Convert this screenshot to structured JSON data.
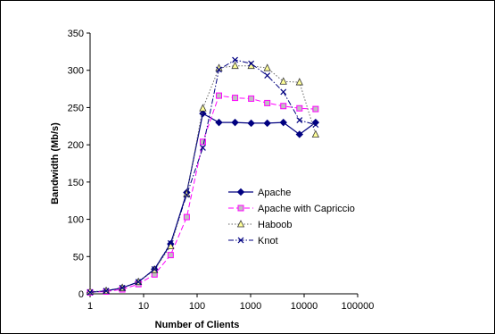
{
  "chart_data": {
    "type": "line",
    "title": "",
    "xlabel": "Number of Clients",
    "ylabel": "Bandwidth (Mb/s)",
    "xscale": "log",
    "xlim": [
      1,
      100000
    ],
    "ylim": [
      0,
      350
    ],
    "xticks": [
      "1",
      "10",
      "100",
      "1000",
      "10000",
      "100000"
    ],
    "yticks": [
      "0",
      "50",
      "100",
      "150",
      "200",
      "250",
      "300",
      "350"
    ],
    "grid": false,
    "legend_position": "center-right",
    "series": [
      {
        "name": "Apache",
        "color": "#000080",
        "dash": "solid",
        "marker": "diamond",
        "x": [
          1,
          2,
          4,
          8,
          16,
          32,
          64,
          128,
          256,
          512,
          1024,
          2048,
          4096,
          8192,
          16384
        ],
        "y": [
          2,
          4,
          8,
          16,
          33,
          67,
          136,
          242,
          230,
          230,
          229,
          229,
          230,
          214,
          230
        ]
      },
      {
        "name": "Apache with Capriccio",
        "color": "#ff00ff",
        "dash": "dashed",
        "marker": "square",
        "x": [
          1,
          2,
          4,
          8,
          16,
          32,
          64,
          128,
          256,
          512,
          1024,
          2048,
          4096,
          8192,
          16384
        ],
        "y": [
          2,
          3,
          6,
          13,
          26,
          52,
          103,
          204,
          266,
          263,
          262,
          256,
          252,
          249,
          248
        ]
      },
      {
        "name": "Haboob",
        "color": "#666666",
        "dash": "dotted",
        "marker": "triangle",
        "x": [
          1,
          2,
          4,
          8,
          16,
          32,
          64,
          128,
          256,
          512,
          1024,
          2048,
          4096,
          8192,
          16384
        ],
        "y": [
          3,
          4,
          8,
          16,
          32,
          64,
          134,
          249,
          303,
          306,
          306,
          303,
          285,
          284,
          214
        ]
      },
      {
        "name": "Knot",
        "color": "#000080",
        "dash": "dashdot",
        "marker": "x",
        "x": [
          1,
          2,
          4,
          8,
          16,
          32,
          64,
          128,
          256,
          512,
          1024,
          2048,
          4096,
          8192,
          16384
        ],
        "y": [
          2,
          4,
          8,
          16,
          33,
          68,
          133,
          196,
          301,
          314,
          309,
          293,
          271,
          233,
          227
        ]
      }
    ]
  }
}
